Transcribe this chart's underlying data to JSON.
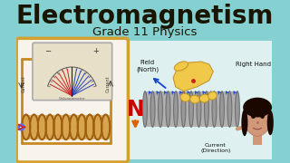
{
  "bg_color": "#85d0d0",
  "title": "Electromagnetism",
  "title_color": "#1a1500",
  "title_fontsize": 20,
  "subtitle": "Grade 11 Physics",
  "subtitle_color": "#1a1500",
  "subtitle_fontsize": 9.5,
  "left_panel_bg": "#f8f4ec",
  "left_panel_border": "#d4a030",
  "galv_box_bg": "#e8dfc8",
  "label_field": "Field\n(North)",
  "label_right_hand": "Right Hand",
  "label_current": "Current\n(Direction)",
  "label_n": "N",
  "label_n_color": "#cc0000",
  "coil_color_main": "#c88820",
  "coil_color_dark": "#a06010",
  "coil_color_light": "#e8b040",
  "solenoid_fill": "#a8a8a8",
  "solenoid_ring": "#909090",
  "solenoid_dark": "#787878",
  "arrow_blue": "#1144cc",
  "arrow_orange": "#e06000",
  "text_color": "#111111",
  "hand_color": "#f0c84a",
  "hand_edge": "#c09020",
  "face_color": "#d09878",
  "hair_color": "#1a0800"
}
